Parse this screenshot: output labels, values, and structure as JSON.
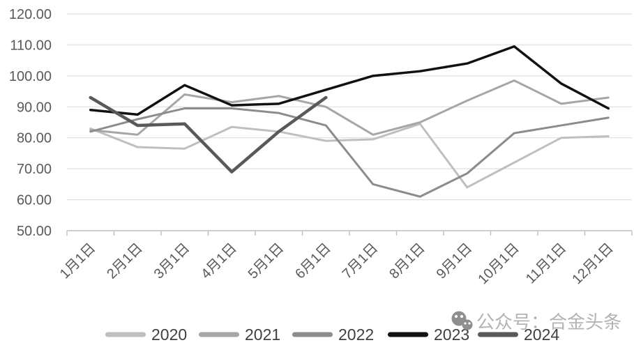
{
  "chart_data": {
    "type": "line",
    "title": "",
    "xlabel": "",
    "ylabel": "",
    "categories": [
      "1月1日",
      "2月1日",
      "3月1日",
      "4月1日",
      "5月1日",
      "6月1日",
      "7月1日",
      "8月1日",
      "9月1日",
      "10月1日",
      "11月1日",
      "12月1日"
    ],
    "series": [
      {
        "name": "2020",
        "color": "#bfbfbf",
        "width": 3,
        "values": [
          83,
          77,
          76.5,
          83.5,
          82,
          79,
          79.5,
          84.5,
          64,
          72,
          80,
          80.5
        ]
      },
      {
        "name": "2021",
        "color": "#a6a6a6",
        "width": 3,
        "values": [
          82.5,
          81,
          94,
          91.5,
          93.5,
          90,
          81,
          85,
          92,
          98.5,
          91,
          93
        ]
      },
      {
        "name": "2022",
        "color": "#8c8c8c",
        "width": 3,
        "values": [
          82,
          86,
          89.5,
          89.5,
          88,
          84,
          65,
          61,
          68.5,
          81.5,
          84,
          86.5
        ]
      },
      {
        "name": "2023",
        "color": "#111111",
        "width": 3.5,
        "values": [
          89,
          87.5,
          97,
          90.5,
          91,
          95.5,
          100,
          101.5,
          104,
          109.5,
          97.5,
          89.5
        ]
      },
      {
        "name": "2024",
        "color": "#595959",
        "width": 4.5,
        "values": [
          93,
          84,
          84.5,
          69,
          82,
          93,
          null,
          null,
          null,
          null,
          null,
          null
        ]
      }
    ],
    "y_axis": {
      "min": 50,
      "max": 120,
      "step": 10,
      "tick_labels": [
        "120.00",
        "110.00",
        "100.00",
        "90.00",
        "80.00",
        "70.00",
        "60.00",
        "50.00"
      ]
    },
    "x_axis": {
      "label_rotation": -45
    },
    "grid": true,
    "legend_position": "bottom",
    "legend_entries": [
      "2020",
      "2021",
      "2022",
      "2023",
      "2024"
    ]
  },
  "watermark": {
    "text": "公众号：合金头条",
    "icon": "wechat-official-account-icon"
  },
  "colors": {
    "background": "#ffffff",
    "grid": "#d9d9d9",
    "axis": "#bfbfbf",
    "tick_text": "#595959",
    "legend_text": "#404040",
    "watermark_text": "#b3b3b3",
    "watermark_icon": "#8f8f8f"
  }
}
